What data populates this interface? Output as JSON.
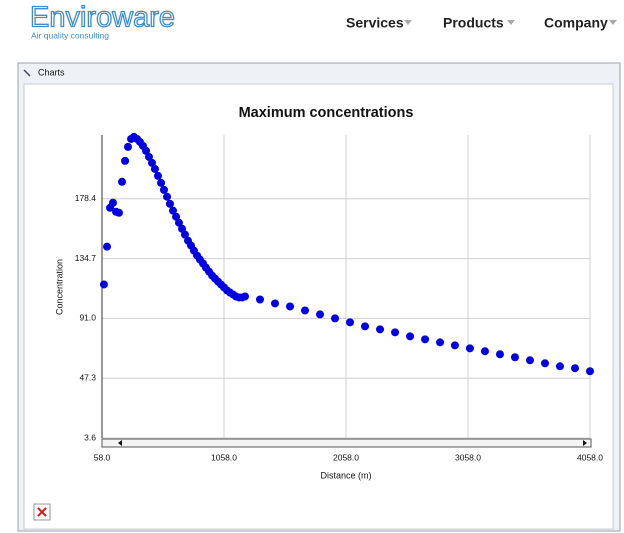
{
  "header": {
    "logo": "Enviroware",
    "tagline": "Air quality consulting",
    "nav": [
      "Services",
      "Products",
      "Company"
    ]
  },
  "window": {
    "title": "Charts"
  },
  "chart_data": {
    "type": "scatter",
    "title": "Maximum concentrations",
    "x_label": "Distance (m)",
    "y_label": "Concentration",
    "color": "#0000e0",
    "grid": true,
    "xlim": [
      58,
      4058
    ],
    "xticks": [
      {
        "value": 58,
        "label": "58.0"
      },
      {
        "value": 1058,
        "label": "1058.0"
      },
      {
        "value": 2058,
        "label": "2058.0"
      },
      {
        "value": 3058,
        "label": "3058.0"
      },
      {
        "value": 4058,
        "label": "4058.0"
      }
    ],
    "ylim": [
      3.6,
      225
    ],
    "yticks": [
      3.6,
      47.3,
      {
        "value": 91,
        "label": "91.0"
      },
      134.7,
      178.4
    ],
    "x": [
      74,
      99,
      124,
      148,
      173,
      197,
      222,
      247,
      271,
      296,
      320,
      345,
      369,
      394,
      419,
      443,
      468,
      492,
      517,
      542,
      566,
      591,
      615,
      640,
      665,
      689,
      714,
      738,
      763,
      788,
      812,
      837,
      861,
      886,
      910,
      935,
      960,
      984,
      1009,
      1033,
      1058,
      1083,
      1107,
      1132,
      1156,
      1181,
      1206,
      1230,
      1353,
      1476,
      1599,
      1722,
      1845,
      1968,
      2091,
      2214,
      2337,
      2460,
      2583,
      2706,
      2829,
      2951,
      3074,
      3197,
      3320,
      3443,
      3566,
      3689,
      3812,
      3935,
      4058
    ],
    "values": [
      115.8,
      143.4,
      171.8,
      175.5,
      168.9,
      168.2,
      190.8,
      206.1,
      216.3,
      222.1,
      223.6,
      222.1,
      219.9,
      217.0,
      213.4,
      209.0,
      204.6,
      200.2,
      195.1,
      190.0,
      184.9,
      179.9,
      174.7,
      169.7,
      165.3,
      160.9,
      156.5,
      152.2,
      147.8,
      144.2,
      140.5,
      136.9,
      134.0,
      131.1,
      128.1,
      125.2,
      122.3,
      120.1,
      117.9,
      115.8,
      113.6,
      111.4,
      109.9,
      108.5,
      107.0,
      106.3,
      106.3,
      107.0,
      104.8,
      101.9,
      99.7,
      96.8,
      93.9,
      91.0,
      88.1,
      85.2,
      83.0,
      80.8,
      77.9,
      75.7,
      73.5,
      71.3,
      69.1,
      67.0,
      64.8,
      62.6,
      60.4,
      58.2,
      56.0,
      54.6,
      52.4
    ]
  }
}
